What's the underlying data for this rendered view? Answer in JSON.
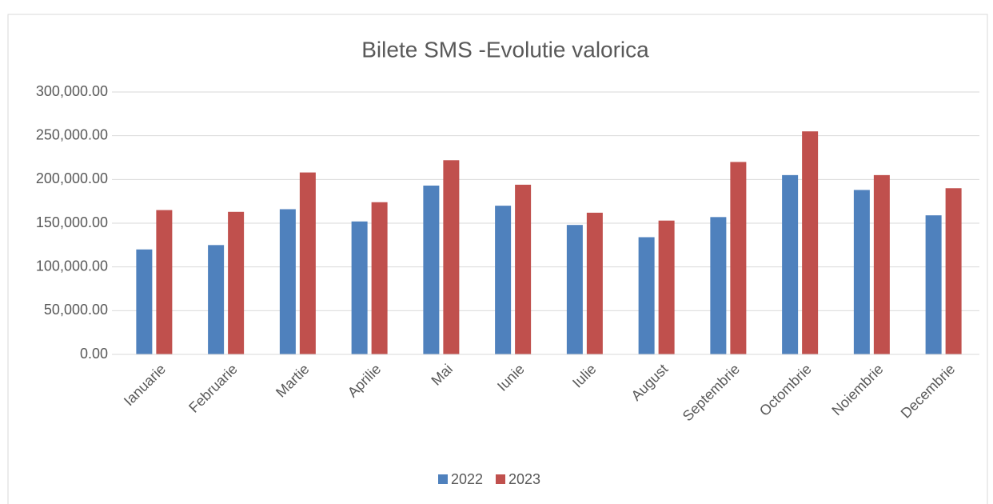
{
  "chart_data": {
    "type": "bar",
    "title": "Bilete SMS -Evolutie valorica",
    "categories": [
      "Ianuarie",
      "Februarie",
      "Martie",
      "Aprilie",
      "Mai",
      "Iunie",
      "Iulie",
      "August",
      "Septembrie",
      "Octombrie",
      "Noiembrie",
      "Decembrie"
    ],
    "series": [
      {
        "name": "2022",
        "color": "#4f81bd",
        "values": [
          120000,
          125000,
          166000,
          152000,
          193000,
          170000,
          148000,
          134000,
          157000,
          205000,
          188000,
          159000
        ]
      },
      {
        "name": "2023",
        "color": "#c0504d",
        "values": [
          165000,
          163000,
          208000,
          174000,
          222000,
          194000,
          162000,
          153000,
          220000,
          255000,
          205000,
          190000
        ]
      }
    ],
    "ylim": [
      0,
      300000
    ],
    "yticks": [
      {
        "value": 0,
        "label": "0.00"
      },
      {
        "value": 50000,
        "label": "50,000.00"
      },
      {
        "value": 100000,
        "label": "100,000.00"
      },
      {
        "value": 150000,
        "label": "150,000.00"
      },
      {
        "value": 200000,
        "label": "200,000.00"
      },
      {
        "value": 250000,
        "label": "250,000.00"
      },
      {
        "value": 300000,
        "label": "300,000.00"
      }
    ],
    "grid": true,
    "legend": "bottom"
  }
}
